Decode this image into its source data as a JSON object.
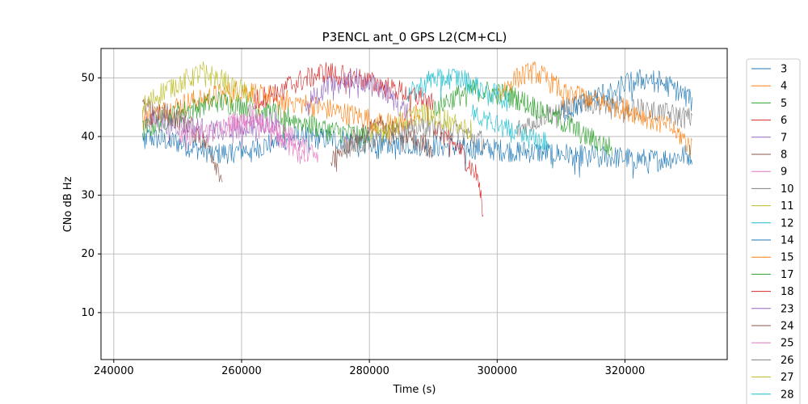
{
  "chart_data": {
    "type": "line",
    "title": "P3ENCL ant_0 GPS L2(CM+CL)",
    "xlabel": "Time (s)",
    "ylabel": "CNo dB Hz",
    "xlim": [
      238000,
      336000
    ],
    "ylim": [
      2,
      55
    ],
    "xticks": [
      240000,
      260000,
      280000,
      300000,
      320000
    ],
    "yticks": [
      10,
      20,
      30,
      40,
      50
    ],
    "grid": true,
    "legend": "outside-right",
    "colors": [
      "#1f77b4",
      "#ff7f0e",
      "#2ca02c",
      "#d62728",
      "#9467bd",
      "#8c564b",
      "#e377c2",
      "#7f7f7f",
      "#bcbd22",
      "#17becf"
    ],
    "series": [
      {
        "name": "3",
        "x": [
          244500,
          250000,
          256000,
          262000,
          268000,
          325000,
          330500
        ],
        "y": [
          40,
          39,
          37,
          38,
          40,
          36,
          37
        ]
      },
      {
        "name": "4",
        "x": [
          244500,
          252000,
          260000,
          268000,
          276000,
          284000,
          288000
        ],
        "y": [
          43,
          46,
          48,
          46,
          44,
          42,
          44
        ]
      },
      {
        "name": "5",
        "x": [
          244500,
          250000,
          256000,
          262000,
          268000,
          274000,
          280000
        ],
        "y": [
          41,
          44,
          46,
          45,
          43,
          41,
          40
        ]
      },
      {
        "name": "6",
        "x": [
          290000,
          294000,
          297000,
          297800
        ],
        "y": [
          42,
          38,
          33,
          26
        ]
      },
      {
        "name": "7",
        "x": [
          245000,
          250000,
          256000,
          262000,
          266000
        ],
        "y": [
          43,
          42,
          41,
          42,
          43
        ]
      },
      {
        "name": "8",
        "x": [
          244500,
          248000,
          252000,
          255000,
          257000
        ],
        "y": [
          45,
          44,
          42,
          38,
          33
        ]
      },
      {
        "name": "9",
        "x": [
          250000,
          256000,
          262000,
          268000,
          272000
        ],
        "y": [
          40,
          41,
          43,
          40,
          36
        ]
      },
      {
        "name": "10",
        "x": [
          303000,
          308000,
          314000,
          320000,
          326000,
          330500
        ],
        "y": [
          41,
          44,
          46,
          45,
          44,
          43
        ]
      },
      {
        "name": "11",
        "x": [
          244500,
          248000,
          252000,
          254000,
          258000,
          262000
        ],
        "y": [
          45,
          48,
          50,
          51,
          49,
          47
        ]
      },
      {
        "name": "12",
        "x": [
          296000,
          300000,
          304000,
          308000
        ],
        "y": [
          44,
          42,
          40,
          39
        ]
      },
      {
        "name": "14",
        "x": [
          310000,
          316000,
          320000,
          324000,
          328000,
          330500
        ],
        "y": [
          44,
          47,
          49,
          50,
          48,
          46
        ]
      },
      {
        "name": "15",
        "x": [
          300000,
          303000,
          306000,
          310000,
          316000,
          322000,
          328000,
          330500
        ],
        "y": [
          47,
          50,
          51,
          48,
          46,
          44,
          41,
          38
        ]
      },
      {
        "name": "17",
        "x": [
          290000,
          296000,
          302000,
          308000,
          314000,
          318000
        ],
        "y": [
          45,
          48,
          47,
          44,
          40,
          38
        ]
      },
      {
        "name": "18",
        "x": [
          262000,
          268000,
          273000,
          278000,
          284000,
          290000
        ],
        "y": [
          46,
          49,
          51,
          50,
          48,
          46
        ]
      },
      {
        "name": "23",
        "x": [
          270000,
          274000,
          278000,
          282000,
          286000
        ],
        "y": [
          46,
          49,
          50,
          48,
          44
        ]
      },
      {
        "name": "24",
        "x": [
          274000,
          278000,
          282000,
          286000,
          290000
        ],
        "y": [
          36,
          40,
          42,
          40,
          38
        ]
      },
      {
        "name": "25",
        "x": [
          258000,
          262000,
          266000,
          270000
        ],
        "y": [
          42,
          44,
          40,
          36
        ]
      },
      {
        "name": "26",
        "x": [
          276000,
          282000,
          288000,
          294000,
          298000
        ],
        "y": [
          38,
          40,
          42,
          41,
          39
        ]
      },
      {
        "name": "27",
        "x": [
          280000,
          284000,
          288000,
          292000,
          296000
        ],
        "y": [
          40,
          42,
          44,
          43,
          41
        ]
      },
      {
        "name": "28",
        "x": [
          286000,
          290000,
          294000,
          298000,
          302000
        ],
        "y": [
          47,
          50,
          50,
          48,
          46
        ]
      }
    ]
  }
}
